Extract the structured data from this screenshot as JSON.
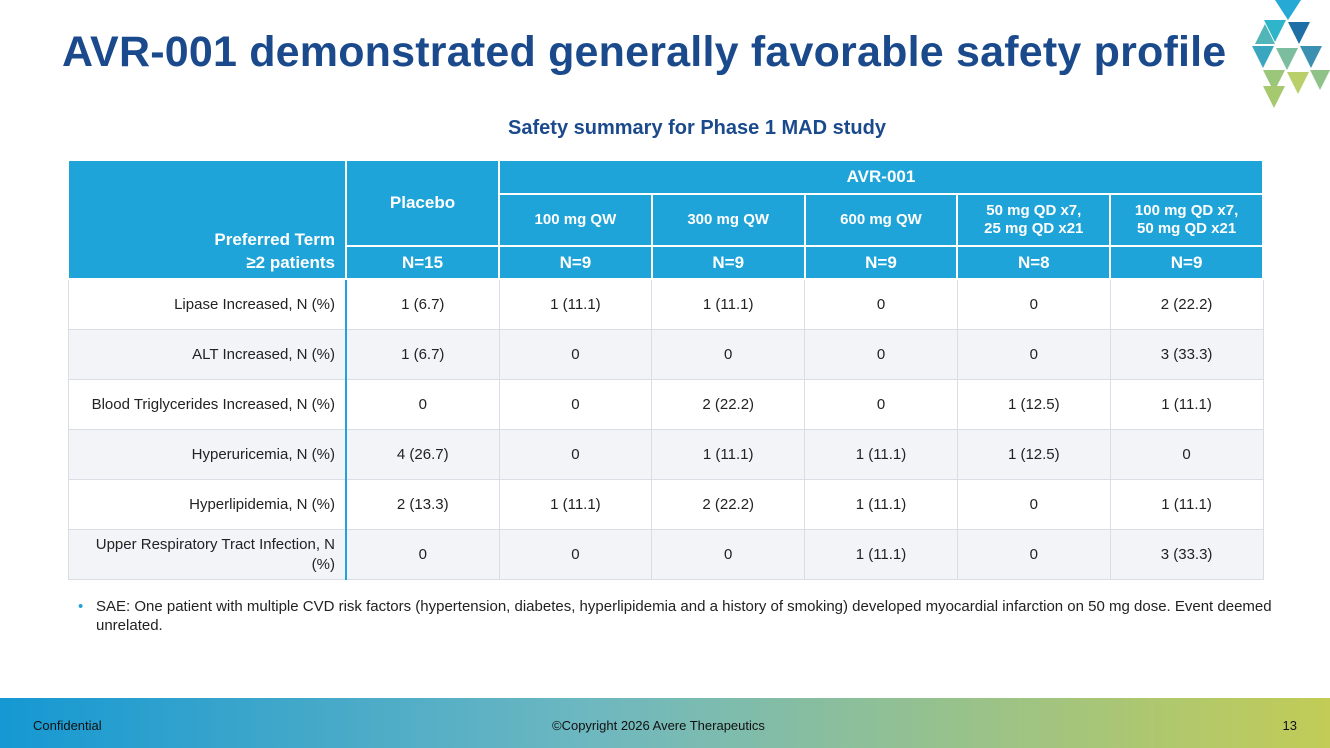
{
  "header": {
    "title": "AVR-001 demonstrated generally favorable safety profile"
  },
  "table": {
    "caption": "Safety summary for Phase 1 MAD study",
    "corner": [
      "Preferred Term",
      "≥2 patients"
    ],
    "placebo": "Placebo",
    "group": "AVR-001",
    "doses": [
      [
        "100 mg QW"
      ],
      [
        "300 mg QW"
      ],
      [
        "600 mg QW"
      ],
      [
        "50 mg QD x7,",
        "25 mg QD x21"
      ],
      [
        "100 mg QD x7,",
        "50 mg QD x21"
      ]
    ],
    "n": [
      "N=15",
      "N=9",
      "N=9",
      "N=9",
      "N=8",
      "N=9"
    ],
    "rows": [
      [
        "Lipase Increased, N (%)",
        "1 (6.7)",
        "1 (11.1)",
        "1 (11.1)",
        "0",
        "0",
        "2 (22.2)"
      ],
      [
        "ALT Increased, N (%)",
        "1 (6.7)",
        "0",
        "0",
        "0",
        "0",
        "3 (33.3)"
      ],
      [
        "Blood Triglycerides Increased, N (%)",
        "0",
        "0",
        "2 (22.2)",
        "0",
        "1 (12.5)",
        "1 (11.1)"
      ],
      [
        "Hyperuricemia, N (%)",
        "4 (26.7)",
        "0",
        "1 (11.1)",
        "1 (11.1)",
        "1 (12.5)",
        "0"
      ],
      [
        "Hyperlipidemia, N (%)",
        "2 (13.3)",
        "1 (11.1)",
        "2 (22.2)",
        "1 (11.1)",
        "0",
        "1 (11.1)"
      ],
      [
        "Upper Respiratory Tract Infection, N (%)",
        "0",
        "0",
        "0",
        "1 (11.1)",
        "0",
        "3 (33.3)"
      ]
    ]
  },
  "footnote": "SAE: One patient with multiple CVD risk factors (hypertension, diabetes, hyperlipidemia and a history of smoking) developed myocardial infarction on 50 mg dose. Event deemed unrelated.",
  "footer": {
    "left": "Confidential",
    "center": "©Copyright 2026 Avere Therapeutics",
    "page": "13"
  }
}
